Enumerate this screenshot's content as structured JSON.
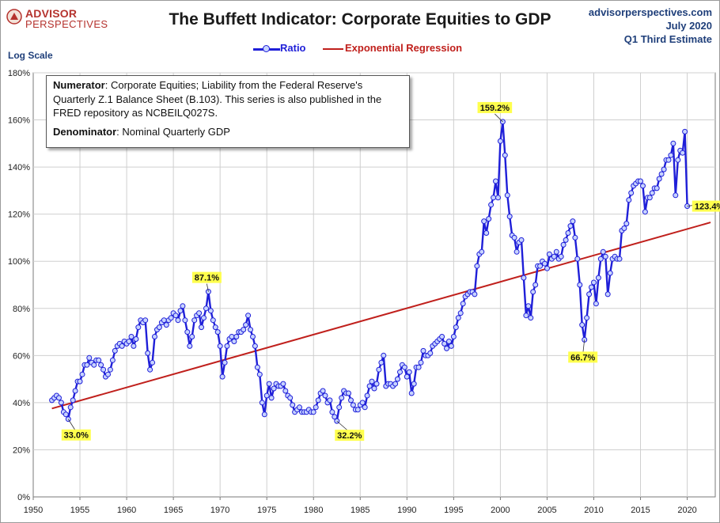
{
  "brand": {
    "line1": "ADVISOR",
    "line2": "PERSPECTIVES"
  },
  "header": {
    "title": "The Buffett Indicator: Corporate Equities to GDP",
    "site": "advisorperspectives.com",
    "date": "July 2020",
    "estimate": "Q1 Third Estimate"
  },
  "axis_note": "Log Scale",
  "note": {
    "numerator_label": "Numerator",
    "numerator_text": ": Corporate Equities; Liability from the Federal Reserve's Quarterly Z.1 Balance Sheet (B.103). This series is also published in the FRED repository  as NCBEILQ027S.",
    "denominator_label": "Denominator",
    "denominator_text": ": Nominal Quarterly GDP"
  },
  "colors": {
    "ratio": "#1f1fd8",
    "ratio_marker": "#c7d3ff",
    "regression": "#c0201c",
    "grid": "#cfcfcf",
    "callout": "#ffff4d"
  },
  "chart_data": {
    "type": "line",
    "xlim": [
      1950,
      2023
    ],
    "ylim": [
      0,
      180
    ],
    "x_ticks": [
      1950,
      1955,
      1960,
      1965,
      1970,
      1975,
      1980,
      1985,
      1990,
      1995,
      2000,
      2005,
      2010,
      2015,
      2020
    ],
    "y_ticks": [
      "0%",
      "20%",
      "40%",
      "60%",
      "80%",
      "100%",
      "120%",
      "140%",
      "160%",
      "180%"
    ],
    "y_tick_values": [
      0,
      20,
      40,
      60,
      80,
      100,
      120,
      140,
      160,
      180
    ],
    "grid": true,
    "legend_position": "top-center",
    "series": [
      {
        "name": "Ratio",
        "points": [
          [
            1952.0,
            41
          ],
          [
            1952.25,
            42
          ],
          [
            1952.5,
            43
          ],
          [
            1952.75,
            42
          ],
          [
            1953.0,
            40
          ],
          [
            1953.25,
            36
          ],
          [
            1953.5,
            35
          ],
          [
            1953.75,
            33
          ],
          [
            1954.0,
            38
          ],
          [
            1954.25,
            41
          ],
          [
            1954.5,
            45
          ],
          [
            1954.75,
            49
          ],
          [
            1955.0,
            49
          ],
          [
            1955.25,
            52
          ],
          [
            1955.5,
            56
          ],
          [
            1955.75,
            56
          ],
          [
            1956.0,
            59
          ],
          [
            1956.25,
            57
          ],
          [
            1956.5,
            56
          ],
          [
            1956.75,
            58
          ],
          [
            1957.0,
            58
          ],
          [
            1957.25,
            56
          ],
          [
            1957.5,
            54
          ],
          [
            1957.75,
            51
          ],
          [
            1958.0,
            52
          ],
          [
            1958.25,
            54
          ],
          [
            1958.5,
            58
          ],
          [
            1958.75,
            62
          ],
          [
            1959.0,
            64
          ],
          [
            1959.25,
            65
          ],
          [
            1959.5,
            64
          ],
          [
            1959.75,
            66
          ],
          [
            1960.0,
            65
          ],
          [
            1960.25,
            66
          ],
          [
            1960.5,
            68
          ],
          [
            1960.75,
            64
          ],
          [
            1961.0,
            67
          ],
          [
            1961.25,
            72
          ],
          [
            1961.5,
            75
          ],
          [
            1961.75,
            74
          ],
          [
            1962.0,
            75
          ],
          [
            1962.25,
            61
          ],
          [
            1962.5,
            54
          ],
          [
            1962.75,
            57
          ],
          [
            1963.0,
            68
          ],
          [
            1963.25,
            71
          ],
          [
            1963.5,
            72
          ],
          [
            1963.75,
            74
          ],
          [
            1964.0,
            75
          ],
          [
            1964.25,
            73
          ],
          [
            1964.5,
            75
          ],
          [
            1964.75,
            76
          ],
          [
            1965.0,
            78
          ],
          [
            1965.25,
            77
          ],
          [
            1965.5,
            75
          ],
          [
            1965.75,
            79
          ],
          [
            1966.0,
            81
          ],
          [
            1966.25,
            75
          ],
          [
            1966.5,
            70
          ],
          [
            1966.75,
            64
          ],
          [
            1967.0,
            68
          ],
          [
            1967.25,
            75
          ],
          [
            1967.5,
            77
          ],
          [
            1967.75,
            78
          ],
          [
            1968.0,
            72
          ],
          [
            1968.25,
            76
          ],
          [
            1968.5,
            80
          ],
          [
            1968.75,
            87.1
          ],
          [
            1969.0,
            79
          ],
          [
            1969.25,
            75
          ],
          [
            1969.5,
            72
          ],
          [
            1969.75,
            70
          ],
          [
            1970.0,
            64
          ],
          [
            1970.25,
            51
          ],
          [
            1970.5,
            57
          ],
          [
            1970.75,
            64
          ],
          [
            1971.0,
            67
          ],
          [
            1971.25,
            68
          ],
          [
            1971.5,
            66
          ],
          [
            1971.75,
            68
          ],
          [
            1972.0,
            70
          ],
          [
            1972.25,
            70
          ],
          [
            1972.5,
            71
          ],
          [
            1972.75,
            73
          ],
          [
            1973.0,
            77
          ],
          [
            1973.25,
            71
          ],
          [
            1973.5,
            68
          ],
          [
            1973.75,
            64
          ],
          [
            1974.0,
            55
          ],
          [
            1974.25,
            52
          ],
          [
            1974.5,
            40
          ],
          [
            1974.75,
            35
          ],
          [
            1975.0,
            43
          ],
          [
            1975.25,
            48
          ],
          [
            1975.5,
            42
          ],
          [
            1975.75,
            46
          ],
          [
            1976.0,
            48
          ],
          [
            1976.25,
            47
          ],
          [
            1976.5,
            47
          ],
          [
            1976.75,
            48
          ],
          [
            1977.0,
            45
          ],
          [
            1977.25,
            43
          ],
          [
            1977.5,
            42
          ],
          [
            1977.75,
            39
          ],
          [
            1978.0,
            36
          ],
          [
            1978.25,
            37
          ],
          [
            1978.5,
            38
          ],
          [
            1978.75,
            36
          ],
          [
            1979.0,
            36
          ],
          [
            1979.25,
            36
          ],
          [
            1979.5,
            37
          ],
          [
            1979.75,
            36
          ],
          [
            1980.0,
            36
          ],
          [
            1980.25,
            38
          ],
          [
            1980.5,
            41
          ],
          [
            1980.75,
            44
          ],
          [
            1981.0,
            45
          ],
          [
            1981.25,
            43
          ],
          [
            1981.5,
            40
          ],
          [
            1981.75,
            41
          ],
          [
            1982.0,
            36
          ],
          [
            1982.25,
            34
          ],
          [
            1982.5,
            32.2
          ],
          [
            1982.75,
            38
          ],
          [
            1983.0,
            42
          ],
          [
            1983.25,
            45
          ],
          [
            1983.5,
            44
          ],
          [
            1983.75,
            44
          ],
          [
            1984.0,
            41
          ],
          [
            1984.25,
            39
          ],
          [
            1984.5,
            37
          ],
          [
            1984.75,
            37
          ],
          [
            1985.0,
            39
          ],
          [
            1985.25,
            40
          ],
          [
            1985.5,
            38
          ],
          [
            1985.75,
            43
          ],
          [
            1986.0,
            47
          ],
          [
            1986.25,
            49
          ],
          [
            1986.5,
            46
          ],
          [
            1986.75,
            48
          ],
          [
            1987.0,
            54
          ],
          [
            1987.25,
            57
          ],
          [
            1987.5,
            60
          ],
          [
            1987.75,
            47
          ],
          [
            1988.0,
            48
          ],
          [
            1988.25,
            48
          ],
          [
            1988.5,
            47
          ],
          [
            1988.75,
            48
          ],
          [
            1989.0,
            50
          ],
          [
            1989.25,
            53
          ],
          [
            1989.5,
            56
          ],
          [
            1989.75,
            55
          ],
          [
            1990.0,
            51
          ],
          [
            1990.25,
            53
          ],
          [
            1990.5,
            44
          ],
          [
            1990.75,
            48
          ],
          [
            1991.0,
            55
          ],
          [
            1991.25,
            55
          ],
          [
            1991.5,
            57
          ],
          [
            1991.75,
            62
          ],
          [
            1992.0,
            60
          ],
          [
            1992.25,
            60
          ],
          [
            1992.5,
            61
          ],
          [
            1992.75,
            64
          ],
          [
            1993.0,
            65
          ],
          [
            1993.25,
            66
          ],
          [
            1993.5,
            67
          ],
          [
            1993.75,
            68
          ],
          [
            1994.0,
            65
          ],
          [
            1994.25,
            63
          ],
          [
            1994.5,
            66
          ],
          [
            1994.75,
            64
          ],
          [
            1995.0,
            68
          ],
          [
            1995.25,
            72
          ],
          [
            1995.5,
            76
          ],
          [
            1995.75,
            78
          ],
          [
            1996.0,
            82
          ],
          [
            1996.25,
            85
          ],
          [
            1996.5,
            86
          ],
          [
            1996.75,
            87
          ],
          [
            1997.0,
            87
          ],
          [
            1997.25,
            86
          ],
          [
            1997.5,
            98
          ],
          [
            1997.75,
            103
          ],
          [
            1998.0,
            104
          ],
          [
            1998.25,
            117
          ],
          [
            1998.5,
            112
          ],
          [
            1998.75,
            118
          ],
          [
            1999.0,
            124
          ],
          [
            1999.25,
            127
          ],
          [
            1999.5,
            134
          ],
          [
            1999.75,
            127
          ],
          [
            2000.0,
            151
          ],
          [
            2000.25,
            159.2
          ],
          [
            2000.5,
            145
          ],
          [
            2000.75,
            128
          ],
          [
            2001.0,
            119
          ],
          [
            2001.25,
            111
          ],
          [
            2001.5,
            110
          ],
          [
            2001.75,
            104
          ],
          [
            2002.0,
            108
          ],
          [
            2002.25,
            109
          ],
          [
            2002.5,
            93
          ],
          [
            2002.75,
            77
          ],
          [
            2003.0,
            81
          ],
          [
            2003.25,
            76
          ],
          [
            2003.5,
            87
          ],
          [
            2003.75,
            90
          ],
          [
            2004.0,
            98
          ],
          [
            2004.25,
            98
          ],
          [
            2004.5,
            100
          ],
          [
            2004.75,
            99
          ],
          [
            2005.0,
            97
          ],
          [
            2005.25,
            103
          ],
          [
            2005.5,
            101
          ],
          [
            2005.75,
            102
          ],
          [
            2006.0,
            104
          ],
          [
            2006.25,
            101
          ],
          [
            2006.5,
            102
          ],
          [
            2006.75,
            107
          ],
          [
            2007.0,
            109
          ],
          [
            2007.25,
            112
          ],
          [
            2007.5,
            115
          ],
          [
            2007.75,
            117
          ],
          [
            2008.0,
            110
          ],
          [
            2008.25,
            101
          ],
          [
            2008.5,
            90
          ],
          [
            2008.75,
            73
          ],
          [
            2009.0,
            66.7
          ],
          [
            2009.25,
            76
          ],
          [
            2009.5,
            86
          ],
          [
            2009.75,
            89
          ],
          [
            2010.0,
            91
          ],
          [
            2010.25,
            82
          ],
          [
            2010.5,
            93
          ],
          [
            2010.75,
            101
          ],
          [
            2011.0,
            104
          ],
          [
            2011.25,
            102
          ],
          [
            2011.5,
            86
          ],
          [
            2011.75,
            95
          ],
          [
            2012.0,
            101
          ],
          [
            2012.25,
            102
          ],
          [
            2012.5,
            101
          ],
          [
            2012.75,
            101
          ],
          [
            2013.0,
            113
          ],
          [
            2013.25,
            114
          ],
          [
            2013.5,
            116
          ],
          [
            2013.75,
            126
          ],
          [
            2014.0,
            129
          ],
          [
            2014.25,
            132
          ],
          [
            2014.5,
            133
          ],
          [
            2014.75,
            134
          ],
          [
            2015.0,
            134
          ],
          [
            2015.25,
            132
          ],
          [
            2015.5,
            121
          ],
          [
            2015.75,
            127
          ],
          [
            2016.0,
            127
          ],
          [
            2016.25,
            129
          ],
          [
            2016.5,
            131
          ],
          [
            2016.75,
            131
          ],
          [
            2017.0,
            135
          ],
          [
            2017.25,
            137
          ],
          [
            2017.5,
            139
          ],
          [
            2017.75,
            143
          ],
          [
            2018.0,
            143
          ],
          [
            2018.25,
            145
          ],
          [
            2018.5,
            150
          ],
          [
            2018.75,
            128
          ],
          [
            2019.0,
            143
          ],
          [
            2019.25,
            147
          ],
          [
            2019.5,
            146
          ],
          [
            2019.75,
            155
          ],
          [
            2020.0,
            123.4
          ]
        ]
      },
      {
        "name": "Exponential Regression",
        "x": [
          1952,
          2022.5
        ],
        "y": [
          37.5,
          116.5
        ]
      }
    ],
    "annotations": [
      {
        "x": 1953.75,
        "y": 33.0,
        "label": "33.0%"
      },
      {
        "x": 1968.75,
        "y": 87.1,
        "label": "87.1%"
      },
      {
        "x": 1982.5,
        "y": 32.2,
        "label": "32.2%"
      },
      {
        "x": 2000.25,
        "y": 159.2,
        "label": "159.2%"
      },
      {
        "x": 2009.0,
        "y": 66.7,
        "label": "66.7%"
      },
      {
        "x": 2020.0,
        "y": 123.4,
        "label": "123.4%"
      }
    ]
  }
}
